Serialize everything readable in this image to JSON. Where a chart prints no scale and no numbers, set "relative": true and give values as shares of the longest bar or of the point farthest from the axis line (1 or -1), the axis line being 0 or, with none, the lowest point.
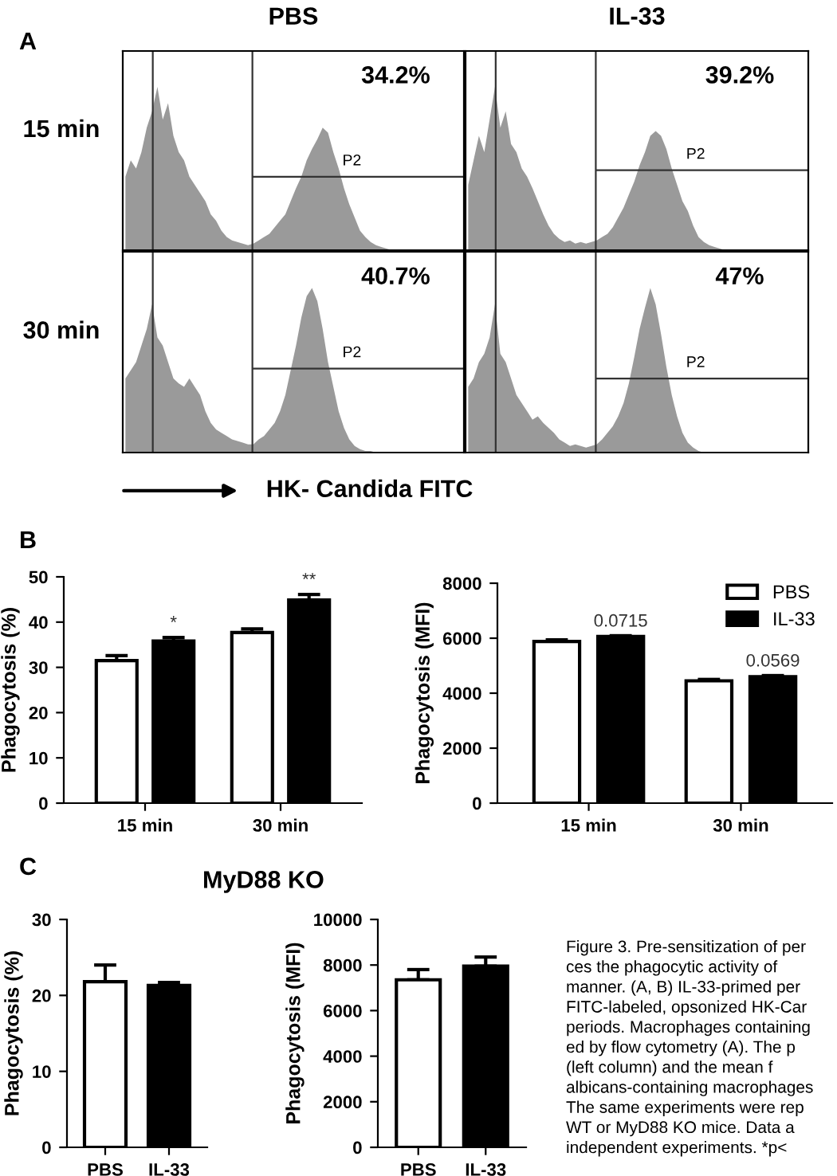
{
  "chart_data": [
    {
      "type": "area",
      "relative": true,
      "title": "PBS",
      "ylabel": "15 min",
      "categories": [
        null,
        null,
        null,
        null,
        null,
        null,
        null,
        null,
        null,
        null,
        null,
        null,
        null,
        null,
        null,
        null,
        null,
        null,
        null,
        null,
        null,
        null,
        null,
        null,
        null,
        null,
        null,
        null,
        null,
        null,
        null,
        null,
        null,
        null,
        null,
        null,
        null,
        null,
        null,
        null,
        null,
        null,
        null,
        null,
        null,
        null,
        null,
        null,
        null,
        null,
        null,
        null,
        null,
        null,
        null,
        null,
        null,
        null,
        null,
        null,
        null,
        null,
        null,
        null
      ],
      "series": [
        {
          "color": "#9a9a9a",
          "values": [
            0.45,
            0.55,
            0.5,
            0.6,
            0.75,
            0.85,
            1.0,
            0.8,
            0.9,
            0.7,
            0.6,
            0.55,
            0.45,
            0.4,
            0.35,
            0.3,
            0.22,
            0.18,
            0.12,
            0.08,
            0.06,
            0.05,
            0.04,
            0.03,
            0.04,
            0.06,
            0.08,
            0.1,
            0.14,
            0.18,
            0.22,
            0.3,
            0.38,
            0.45,
            0.55,
            0.62,
            0.68,
            0.75,
            0.72,
            0.6,
            0.5,
            0.38,
            0.28,
            0.2,
            0.12,
            0.08,
            0.05,
            0.03,
            0.02,
            0.01,
            0,
            0,
            0,
            0,
            0,
            0,
            0,
            0,
            0,
            0,
            0,
            0,
            0,
            0
          ]
        }
      ],
      "ref_lines": [
        {
          "axis": "y",
          "value": 0.45
        }
      ],
      "annotations": [
        "A",
        "34.2%",
        "P2"
      ]
    },
    {
      "type": "area",
      "relative": true,
      "title": "IL-33",
      "categories": [
        null,
        null,
        null,
        null,
        null,
        null,
        null,
        null,
        null,
        null,
        null,
        null,
        null,
        null,
        null,
        null,
        null,
        null,
        null,
        null,
        null,
        null,
        null,
        null,
        null,
        null,
        null,
        null,
        null,
        null,
        null,
        null,
        null,
        null,
        null,
        null,
        null,
        null,
        null,
        null,
        null,
        null,
        null,
        null,
        null,
        null,
        null,
        null,
        null,
        null,
        null,
        null,
        null,
        null,
        null,
        null,
        null,
        null,
        null,
        null,
        null,
        null,
        null,
        null
      ],
      "series": [
        {
          "color": "#9a9a9a",
          "values": [
            0.4,
            0.55,
            0.7,
            0.6,
            0.8,
            1.0,
            0.75,
            0.85,
            0.65,
            0.6,
            0.5,
            0.45,
            0.38,
            0.3,
            0.22,
            0.15,
            0.1,
            0.07,
            0.05,
            0.06,
            0.04,
            0.05,
            0.04,
            0.05,
            0.06,
            0.08,
            0.1,
            0.14,
            0.2,
            0.26,
            0.34,
            0.42,
            0.52,
            0.6,
            0.7,
            0.73,
            0.7,
            0.62,
            0.5,
            0.4,
            0.3,
            0.24,
            0.15,
            0.08,
            0.05,
            0.03,
            0.02,
            0.01,
            0,
            0,
            0,
            0,
            0,
            0,
            0,
            0,
            0,
            0,
            0,
            0,
            0,
            0,
            0,
            0
          ]
        }
      ],
      "ref_lines": [
        {
          "axis": "y",
          "value": 0.49
        }
      ],
      "annotations": [
        "39.2%",
        "P2"
      ]
    },
    {
      "type": "area",
      "relative": true,
      "ylabel": "30 min",
      "xlabel": "HK- Candida FITC",
      "categories": [
        null,
        null,
        null,
        null,
        null,
        null,
        null,
        null,
        null,
        null,
        null,
        null,
        null,
        null,
        null,
        null,
        null,
        null,
        null,
        null,
        null,
        null,
        null,
        null,
        null,
        null,
        null,
        null,
        null,
        null,
        null,
        null,
        null,
        null,
        null,
        null,
        null,
        null,
        null,
        null,
        null,
        null,
        null,
        null,
        null,
        null,
        null,
        null,
        null,
        null,
        null,
        null,
        null,
        null,
        null,
        null,
        null,
        null,
        null,
        null,
        null,
        null,
        null,
        null
      ],
      "series": [
        {
          "color": "#9a9a9a",
          "values": [
            0.45,
            0.5,
            0.55,
            0.65,
            0.75,
            0.9,
            0.7,
            0.65,
            0.55,
            0.45,
            0.42,
            0.4,
            0.45,
            0.4,
            0.35,
            0.25,
            0.18,
            0.14,
            0.12,
            0.1,
            0.08,
            0.07,
            0.06,
            0.05,
            0.05,
            0.08,
            0.1,
            0.14,
            0.18,
            0.25,
            0.35,
            0.5,
            0.65,
            0.82,
            0.95,
            1.0,
            0.92,
            0.75,
            0.55,
            0.4,
            0.25,
            0.15,
            0.08,
            0.04,
            0.02,
            0.01,
            0.01,
            0,
            0,
            0,
            0,
            0,
            0,
            0,
            0,
            0,
            0,
            0,
            0,
            0,
            0,
            0,
            0,
            0
          ]
        }
      ],
      "ref_lines": [
        {
          "axis": "y",
          "value": 0.51
        }
      ],
      "annotations": [
        "40.7%",
        "P2"
      ]
    },
    {
      "type": "area",
      "relative": true,
      "categories": [
        null,
        null,
        null,
        null,
        null,
        null,
        null,
        null,
        null,
        null,
        null,
        null,
        null,
        null,
        null,
        null,
        null,
        null,
        null,
        null,
        null,
        null,
        null,
        null,
        null,
        null,
        null,
        null,
        null,
        null,
        null,
        null,
        null,
        null,
        null,
        null,
        null,
        null,
        null,
        null,
        null,
        null,
        null,
        null,
        null,
        null,
        null,
        null,
        null,
        null,
        null,
        null,
        null,
        null,
        null,
        null,
        null,
        null,
        null,
        null,
        null,
        null,
        null,
        null
      ],
      "series": [
        {
          "color": "#9a9a9a",
          "values": [
            0.4,
            0.45,
            0.55,
            0.6,
            0.7,
            0.9,
            0.6,
            0.55,
            0.45,
            0.35,
            0.3,
            0.25,
            0.2,
            0.22,
            0.18,
            0.15,
            0.12,
            0.08,
            0.06,
            0.04,
            0.05,
            0.04,
            0.03,
            0.04,
            0.05,
            0.08,
            0.12,
            0.16,
            0.22,
            0.3,
            0.42,
            0.58,
            0.75,
            0.88,
            1.0,
            0.9,
            0.72,
            0.52,
            0.35,
            0.22,
            0.12,
            0.06,
            0.03,
            0.01,
            0,
            0,
            0,
            0,
            0,
            0,
            0,
            0,
            0,
            0,
            0,
            0,
            0,
            0,
            0,
            0,
            0,
            0,
            0,
            0
          ]
        }
      ],
      "ref_lines": [
        {
          "axis": "y",
          "value": 0.45
        }
      ],
      "annotations": [
        "47%",
        "P2"
      ]
    },
    {
      "type": "bar",
      "ylabel": "Phagocytosis (%)",
      "categories": [
        "15 min",
        "30 min"
      ],
      "series": [
        {
          "color": "#ffffff",
          "values": [
            31.5,
            37.7
          ],
          "errors": [
            1.1,
            0.8
          ]
        },
        {
          "color": "#000000",
          "values": [
            35.8,
            44.9
          ],
          "errors": [
            0.8,
            1.2
          ]
        }
      ],
      "ylim": [
        0,
        50
      ],
      "yticks": [
        0,
        10,
        20,
        30,
        40,
        50
      ],
      "annotations": [
        "B",
        "*",
        "**"
      ]
    },
    {
      "type": "bar",
      "ylabel": "Phagocytosis (MFI)",
      "categories": [
        "15 min",
        "30 min"
      ],
      "legend": "top right",
      "series": [
        {
          "name": "PBS",
          "color": "#ffffff",
          "values": [
            5880,
            4450
          ],
          "errors": [
            60,
            50
          ]
        },
        {
          "name": "IL-33",
          "color": "#000000",
          "values": [
            6060,
            4600
          ],
          "errors": [
            30,
            40
          ]
        }
      ],
      "ylim": [
        0,
        8000
      ],
      "yticks": [
        0,
        2000,
        4000,
        6000,
        8000
      ],
      "annotations": [
        "0.0715",
        "0.0569"
      ]
    },
    {
      "type": "bar",
      "title": "MyD88 KO",
      "ylabel": "Phagocytosis (%)",
      "categories": [
        "PBS",
        "IL-33"
      ],
      "values": [
        21.8,
        21.3
      ],
      "colors": [
        "#ffffff",
        "#000000"
      ],
      "errors": [
        2.2,
        0.4
      ],
      "ylim": [
        0,
        30
      ],
      "yticks": [
        0,
        10,
        20,
        30
      ],
      "annotations": [
        "C"
      ]
    },
    {
      "type": "bar",
      "ylabel": "Phagocytosis (MFI)",
      "categories": [
        "PBS",
        "IL-33"
      ],
      "values": [
        7350,
        7950
      ],
      "colors": [
        "#ffffff",
        "#000000"
      ],
      "errors": [
        450,
        400
      ],
      "ylim": [
        0,
        10000
      ],
      "yticks": [
        0,
        2000,
        4000,
        6000,
        8000,
        10000
      ]
    },
    {
      "type": "other",
      "annotations": [
        "Figure 3. Pre-sensitization of per",
        "ces the phagocytic activity of",
        "manner. (A, B) IL-33-primed per",
        "FITC-labeled, opsonized HK-Car",
        "periods. Macrophages containing",
        "ed by flow cytometry (A). The p",
        "(left column) and the mean f",
        "albicans-containing macrophages",
        "The same experiments were rep",
        "WT or MyD88 KO mice. Data a",
        "independent experiments. *p<"
      ]
    }
  ]
}
